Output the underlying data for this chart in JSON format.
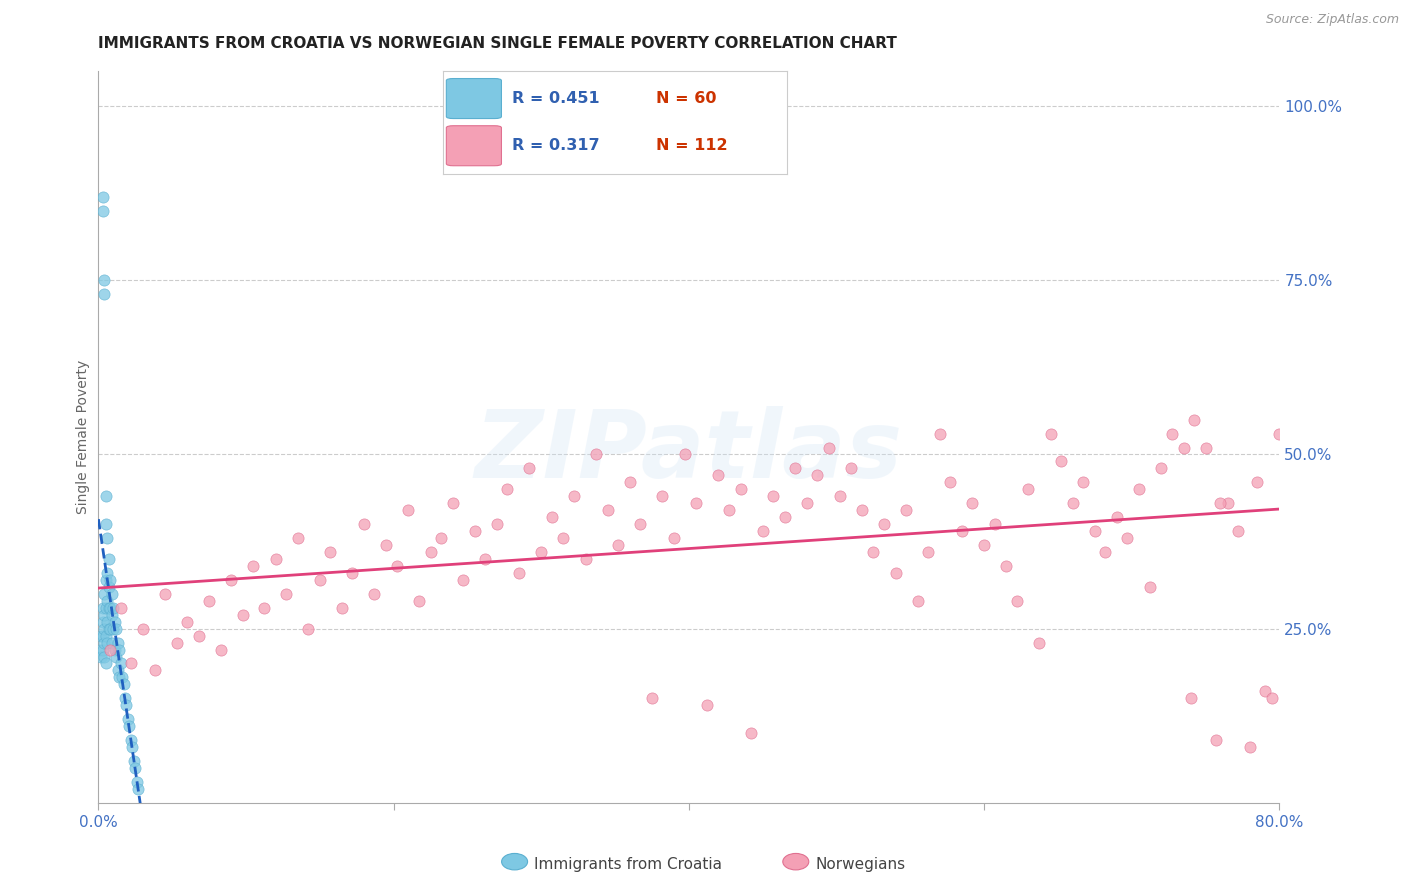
{
  "title": "IMMIGRANTS FROM CROATIA VS NORWEGIAN SINGLE FEMALE POVERTY CORRELATION CHART",
  "source": "Source: ZipAtlas.com",
  "ylabel": "Single Female Poverty",
  "xlim": [
    0.0,
    0.8
  ],
  "ylim": [
    0.0,
    1.05
  ],
  "ytick_labels": [
    "100.0%",
    "75.0%",
    "50.0%",
    "25.0%"
  ],
  "ytick_positions": [
    1.0,
    0.75,
    0.5,
    0.25
  ],
  "grid_color": "#cccccc",
  "background_color": "#ffffff",
  "watermark_text": "ZIPatlas",
  "legend_R1": "R = 0.451",
  "legend_N1": "N = 60",
  "legend_R2": "R = 0.317",
  "legend_N2": "N = 112",
  "croatia_color": "#7ec8e3",
  "norwegian_color": "#f4a0b5",
  "croatia_edge_color": "#5aafd0",
  "norwegian_edge_color": "#e07090",
  "croatia_line_color": "#2060c0",
  "norwegian_line_color": "#e0407a",
  "title_fontsize": 11,
  "axis_label_fontsize": 10,
  "tick_fontsize": 11,
  "croatia_x": [
    0.001,
    0.002,
    0.002,
    0.003,
    0.003,
    0.003,
    0.003,
    0.003,
    0.003,
    0.004,
    0.004,
    0.004,
    0.004,
    0.004,
    0.004,
    0.004,
    0.005,
    0.005,
    0.005,
    0.005,
    0.005,
    0.005,
    0.006,
    0.006,
    0.006,
    0.006,
    0.006,
    0.007,
    0.007,
    0.007,
    0.007,
    0.008,
    0.008,
    0.008,
    0.009,
    0.009,
    0.009,
    0.01,
    0.01,
    0.011,
    0.011,
    0.012,
    0.012,
    0.013,
    0.013,
    0.014,
    0.014,
    0.015,
    0.016,
    0.017,
    0.018,
    0.019,
    0.02,
    0.021,
    0.022,
    0.023,
    0.024,
    0.025,
    0.026,
    0.027
  ],
  "croatia_y": [
    0.22,
    0.24,
    0.21,
    0.87,
    0.85,
    0.28,
    0.26,
    0.24,
    0.22,
    0.75,
    0.73,
    0.3,
    0.27,
    0.25,
    0.23,
    0.21,
    0.44,
    0.4,
    0.32,
    0.28,
    0.24,
    0.2,
    0.38,
    0.33,
    0.29,
    0.26,
    0.23,
    0.35,
    0.31,
    0.28,
    0.25,
    0.32,
    0.28,
    0.25,
    0.3,
    0.27,
    0.23,
    0.28,
    0.25,
    0.26,
    0.22,
    0.25,
    0.21,
    0.23,
    0.19,
    0.22,
    0.18,
    0.2,
    0.18,
    0.17,
    0.15,
    0.14,
    0.12,
    0.11,
    0.09,
    0.08,
    0.06,
    0.05,
    0.03,
    0.02
  ],
  "norwegian_x": [
    0.008,
    0.015,
    0.022,
    0.03,
    0.038,
    0.045,
    0.053,
    0.06,
    0.068,
    0.075,
    0.083,
    0.09,
    0.098,
    0.105,
    0.112,
    0.12,
    0.127,
    0.135,
    0.142,
    0.15,
    0.157,
    0.165,
    0.172,
    0.18,
    0.187,
    0.195,
    0.202,
    0.21,
    0.217,
    0.225,
    0.232,
    0.24,
    0.247,
    0.255,
    0.262,
    0.27,
    0.277,
    0.285,
    0.292,
    0.3,
    0.307,
    0.315,
    0.322,
    0.33,
    0.337,
    0.345,
    0.352,
    0.36,
    0.367,
    0.375,
    0.382,
    0.39,
    0.397,
    0.405,
    0.412,
    0.42,
    0.427,
    0.435,
    0.442,
    0.45,
    0.457,
    0.465,
    0.472,
    0.48,
    0.487,
    0.495,
    0.502,
    0.51,
    0.517,
    0.525,
    0.532,
    0.54,
    0.547,
    0.555,
    0.562,
    0.57,
    0.577,
    0.585,
    0.592,
    0.6,
    0.607,
    0.615,
    0.622,
    0.63,
    0.637,
    0.645,
    0.652,
    0.66,
    0.667,
    0.675,
    0.682,
    0.69,
    0.697,
    0.705,
    0.712,
    0.72,
    0.727,
    0.735,
    0.742,
    0.75,
    0.757,
    0.765,
    0.772,
    0.78,
    0.785,
    0.79,
    0.795,
    0.8,
    0.805,
    0.81,
    0.74,
    0.76
  ],
  "norwegian_y": [
    0.22,
    0.28,
    0.2,
    0.25,
    0.19,
    0.3,
    0.23,
    0.26,
    0.24,
    0.29,
    0.22,
    0.32,
    0.27,
    0.34,
    0.28,
    0.35,
    0.3,
    0.38,
    0.25,
    0.32,
    0.36,
    0.28,
    0.33,
    0.4,
    0.3,
    0.37,
    0.34,
    0.42,
    0.29,
    0.36,
    0.38,
    0.43,
    0.32,
    0.39,
    0.35,
    0.4,
    0.45,
    0.33,
    0.48,
    0.36,
    0.41,
    0.38,
    0.44,
    0.35,
    0.5,
    0.42,
    0.37,
    0.46,
    0.4,
    0.15,
    0.44,
    0.38,
    0.5,
    0.43,
    0.14,
    0.47,
    0.42,
    0.45,
    0.1,
    0.39,
    0.44,
    0.41,
    0.48,
    0.43,
    0.47,
    0.51,
    0.44,
    0.48,
    0.42,
    0.36,
    0.4,
    0.33,
    0.42,
    0.29,
    0.36,
    0.53,
    0.46,
    0.39,
    0.43,
    0.37,
    0.4,
    0.34,
    0.29,
    0.45,
    0.23,
    0.53,
    0.49,
    0.43,
    0.46,
    0.39,
    0.36,
    0.41,
    0.38,
    0.45,
    0.31,
    0.48,
    0.53,
    0.51,
    0.55,
    0.51,
    0.09,
    0.43,
    0.39,
    0.08,
    0.46,
    0.16,
    0.15,
    0.53,
    0.49,
    0.51,
    0.15,
    0.43
  ]
}
